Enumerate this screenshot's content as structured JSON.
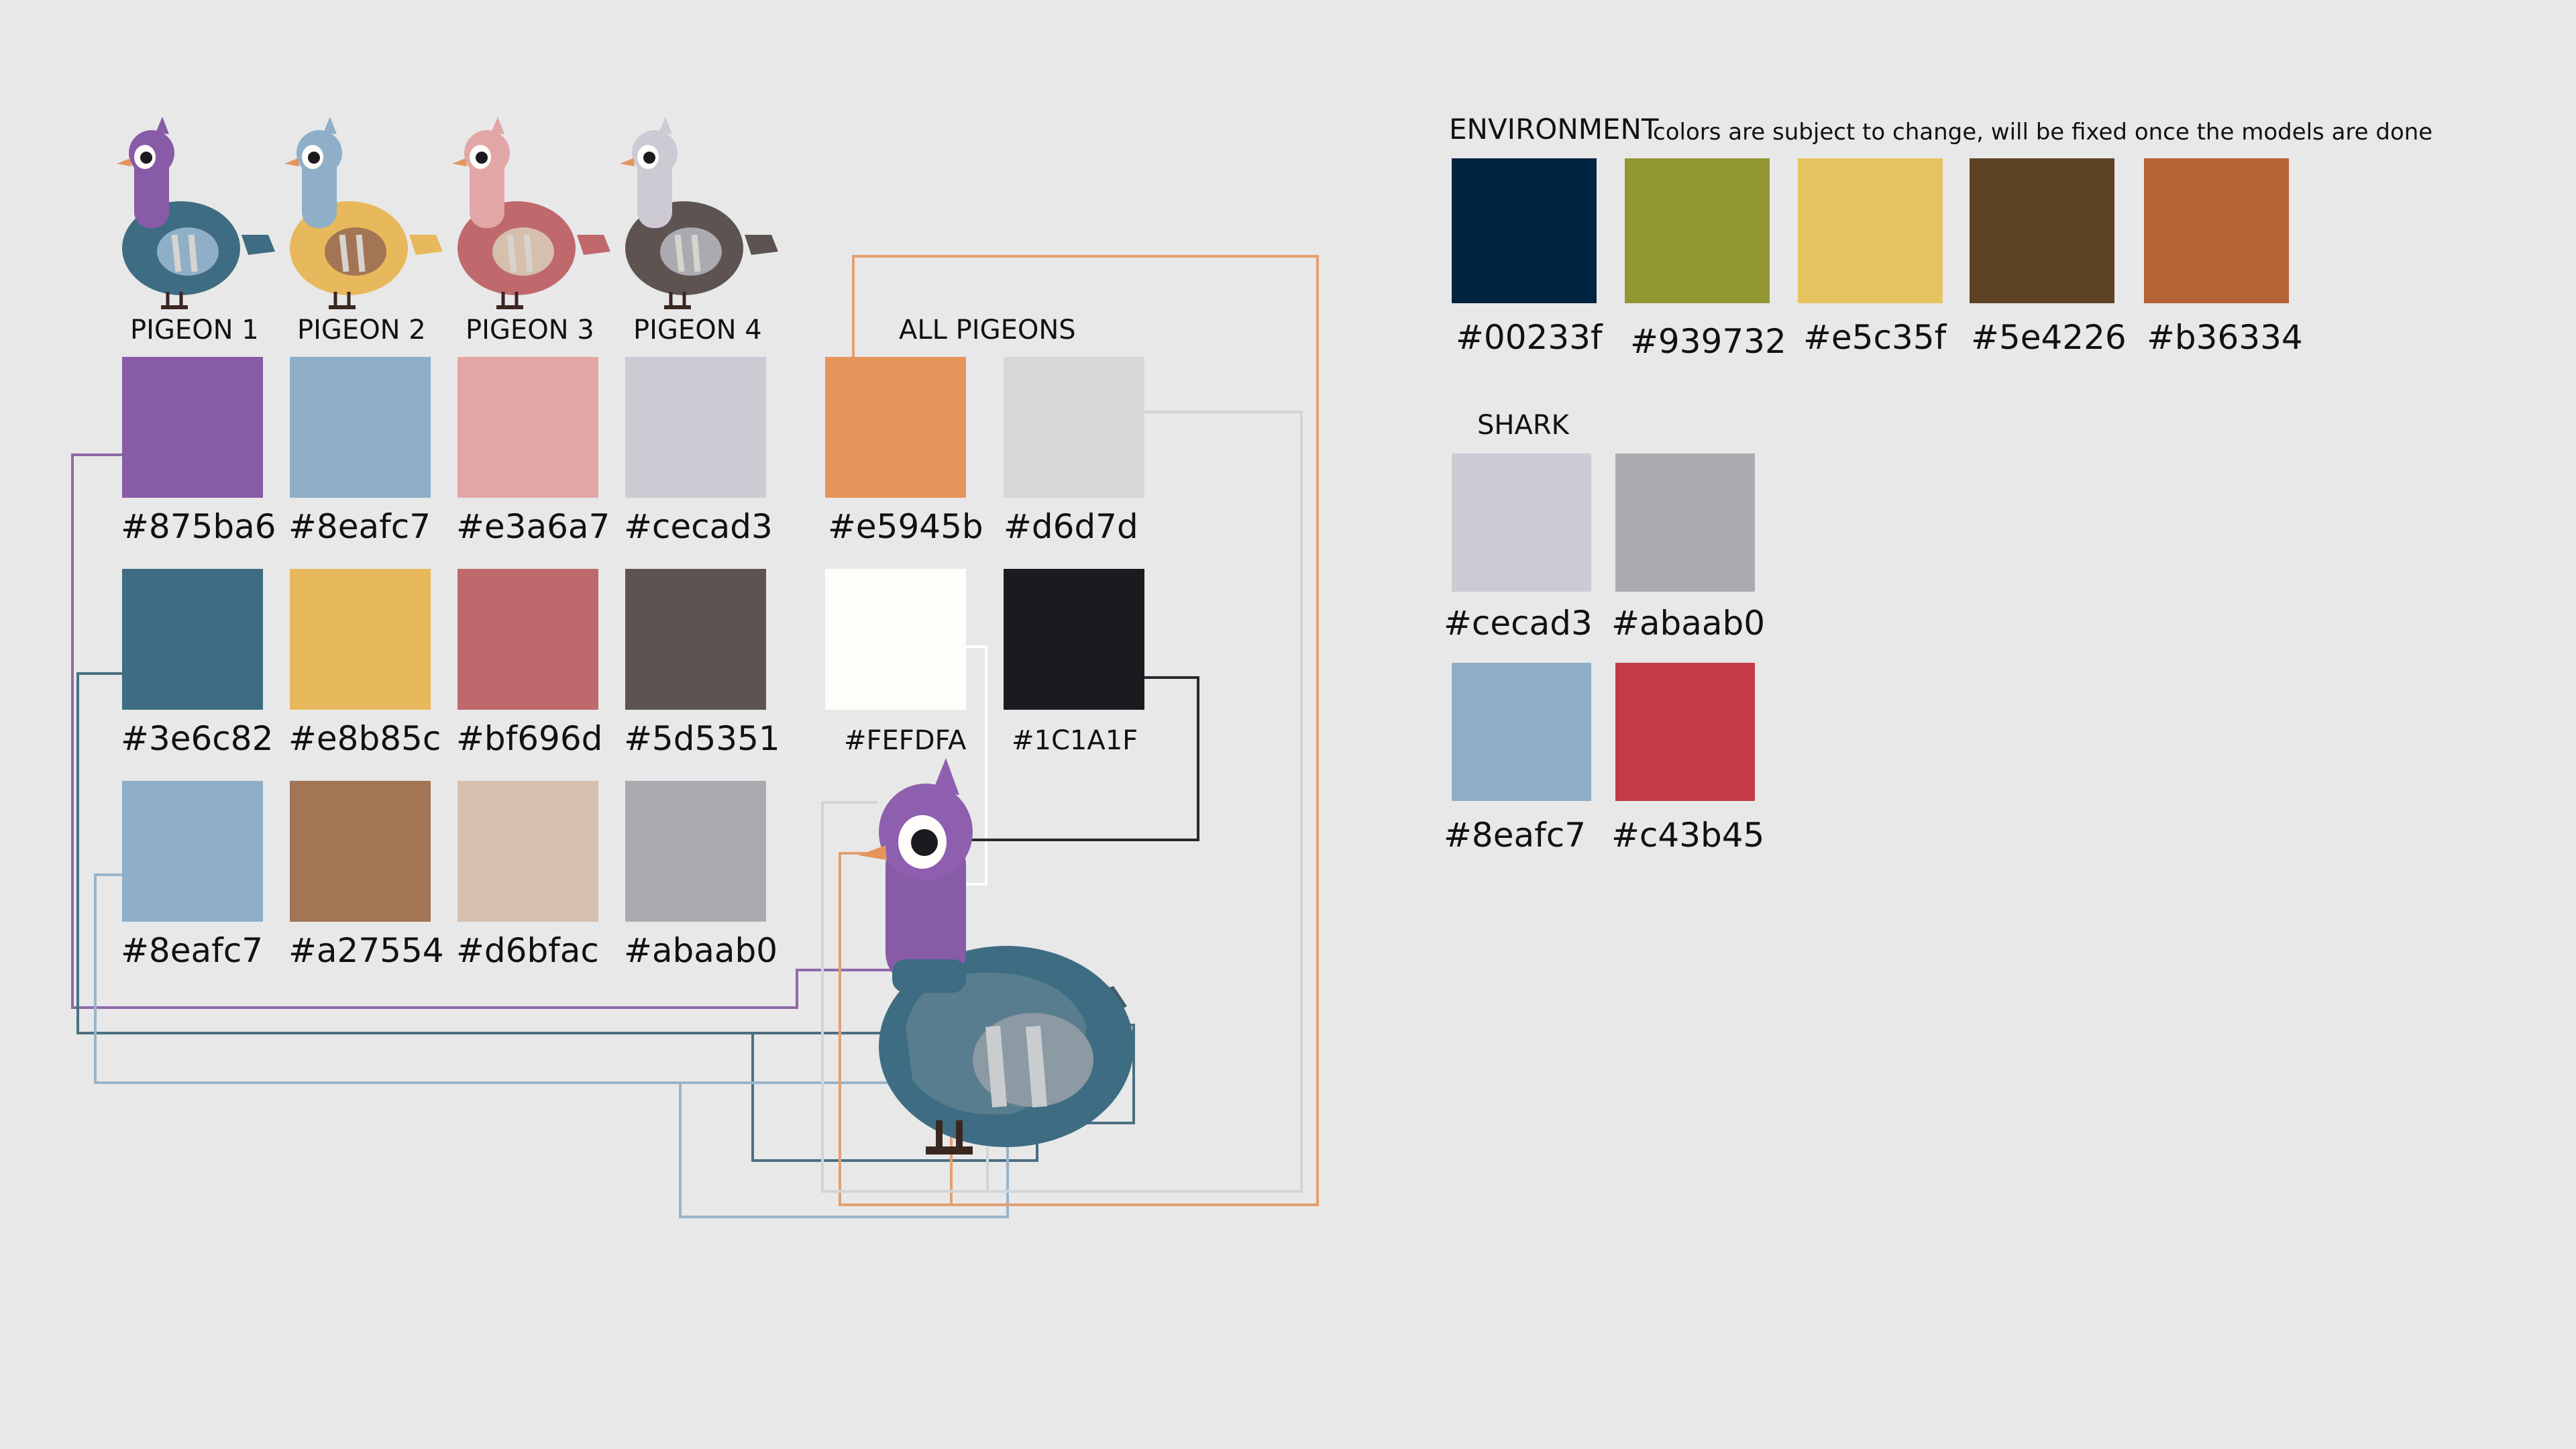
{
  "colors": {
    "background": "#e8e8e9"
  },
  "pigeons": {
    "labels": [
      "PIGEON 1",
      "PIGEON 2",
      "PIGEON 3",
      "PIGEON 4"
    ],
    "all_label": "ALL PIGEONS",
    "palettes": [
      [
        "#875ba6",
        "#3e6c82",
        "#8eafc7"
      ],
      [
        "#8eafc7",
        "#e8b85c",
        "#a27554"
      ],
      [
        "#e3a6a7",
        "#bf696d",
        "#d6bfac"
      ],
      [
        "#cecad3",
        "#5d5351",
        "#abaab0"
      ]
    ],
    "shared": [
      "#e5945b",
      "#d6d7d",
      "#FEFDFA",
      "#1C1A1F"
    ],
    "shared_colors": [
      "#e5945b",
      "#d6d7d7",
      "#fefdfa",
      "#1c1a1f"
    ]
  },
  "environment": {
    "title": "ENVIRONMENT",
    "note": "colors are subject to change, will be fixed once the models are done",
    "colors": [
      "#00233f",
      "#939732",
      "#e5c35f",
      "#5e4226",
      "#b36334"
    ]
  },
  "shark": {
    "title": "SHARK",
    "colors": [
      "#cecad3",
      "#abaab0",
      "#8eafc7",
      "#c43b45"
    ]
  },
  "icons": {
    "small_pigeon": "pigeon-illustration-icon",
    "big_pigeon": "pigeon-model-icon"
  }
}
